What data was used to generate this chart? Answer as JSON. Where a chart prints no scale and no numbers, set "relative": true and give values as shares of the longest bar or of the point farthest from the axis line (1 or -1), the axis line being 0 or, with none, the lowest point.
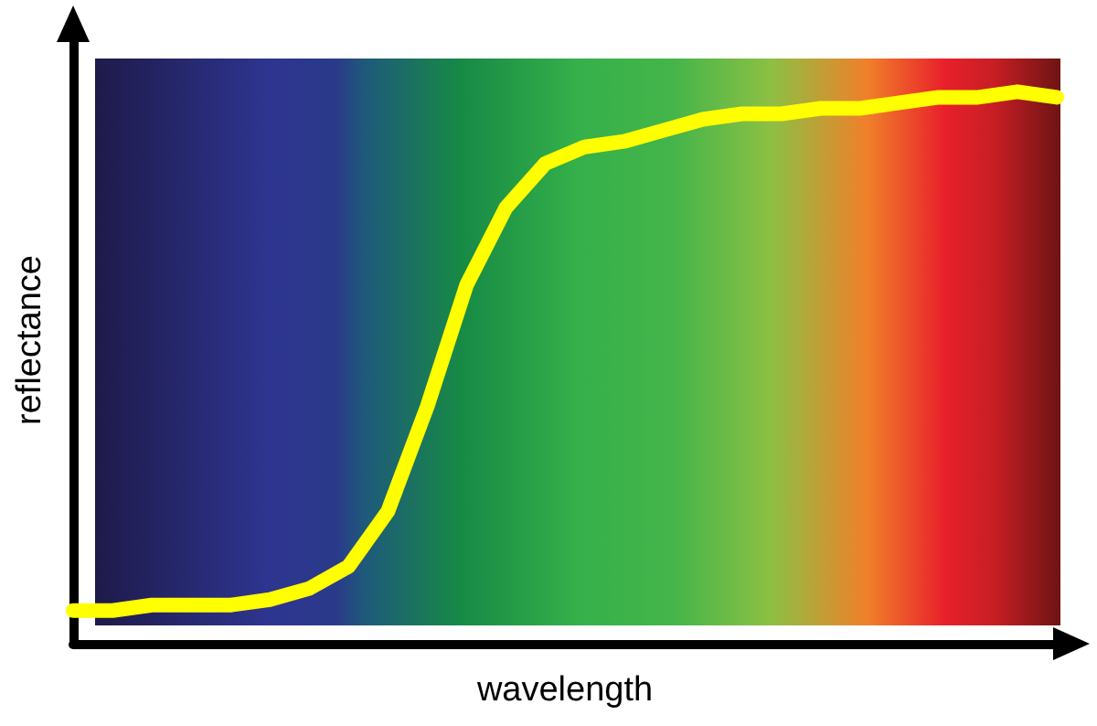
{
  "chart_data": {
    "type": "line",
    "xlabel": "wavelength",
    "ylabel": "reflectance",
    "relative": true,
    "grid": false,
    "categories": [
      null,
      null,
      null,
      null,
      null,
      null,
      null,
      null,
      null,
      null,
      null,
      null,
      null,
      null,
      null,
      null,
      null,
      null,
      null,
      null,
      null,
      null,
      null,
      null,
      null,
      null
    ],
    "series": [
      {
        "color": "#ffff00",
        "values": [
          0.06,
          0.06,
          0.07,
          0.07,
          0.07,
          0.08,
          0.1,
          0.14,
          0.24,
          0.43,
          0.65,
          0.79,
          0.87,
          0.9,
          0.91,
          0.93,
          0.95,
          0.96,
          0.96,
          0.97,
          0.97,
          0.98,
          0.99,
          0.99,
          1.0,
          0.99
        ]
      }
    ]
  }
}
